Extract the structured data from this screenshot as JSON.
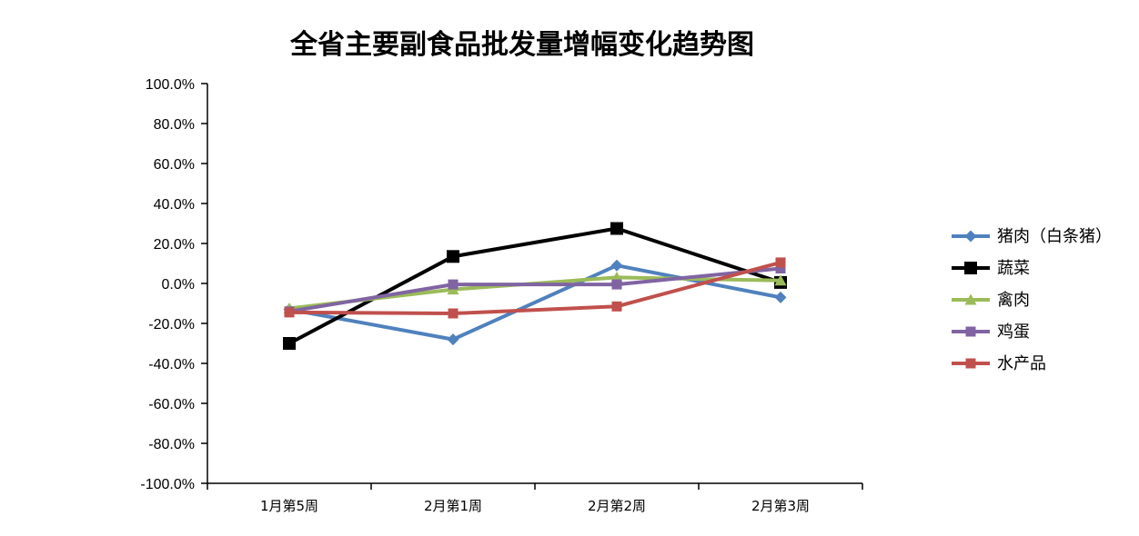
{
  "chart_data": {
    "type": "line",
    "title": "全省主要副食品批发量增幅变化趋势图",
    "xlabel": "",
    "ylabel": "",
    "categories": [
      "1月第5周",
      "2月第1周",
      "2月第2周",
      "2月第3周"
    ],
    "ylim": [
      -100,
      100
    ],
    "ytick_step": 20,
    "ytick_format": "percent_1dp",
    "grid": false,
    "legend_position": "right",
    "series": [
      {
        "name": "猪肉（白条猪）",
        "color": "#4F81BD",
        "marker": "diamond",
        "line_width": 4,
        "values": [
          -13,
          -28,
          9,
          -7
        ]
      },
      {
        "name": "蔬菜",
        "color": "#000000",
        "marker": "square",
        "line_width": 4,
        "values": [
          -30,
          13.5,
          27.5,
          0.5
        ]
      },
      {
        "name": "禽肉",
        "color": "#9BBB59",
        "marker": "triangle",
        "line_width": 4,
        "values": [
          -12.5,
          -3,
          3,
          1.5
        ]
      },
      {
        "name": "鸡蛋",
        "color": "#8064A2",
        "marker": "square",
        "line_width": 4,
        "values": [
          -14,
          -0.5,
          -0.5,
          7.5
        ]
      },
      {
        "name": "水产品",
        "color": "#C0504D",
        "marker": "square",
        "line_width": 4,
        "values": [
          -14.5,
          -15,
          -11.5,
          10.5
        ]
      }
    ]
  }
}
